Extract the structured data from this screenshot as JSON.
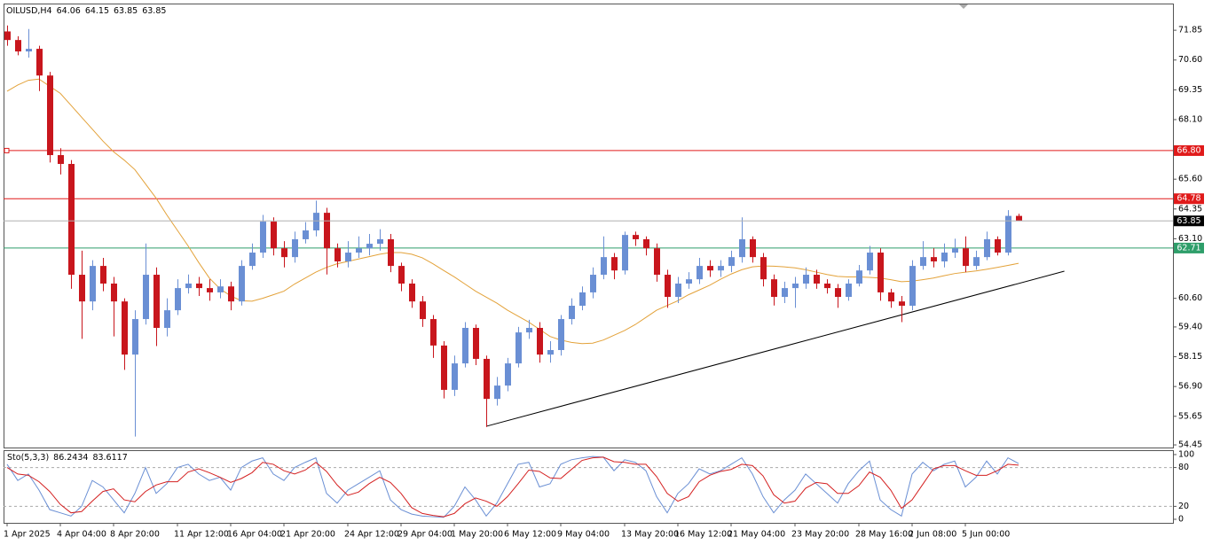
{
  "chart_data": [
    {
      "type": "candlestick",
      "symbol": "OILUSD,H4",
      "categories": [
        "1 Apr 2025",
        null,
        null,
        null,
        null,
        "4 Apr 04:00",
        null,
        null,
        null,
        null,
        "8 Apr 20:00",
        null,
        null,
        null,
        null,
        null,
        "11 Apr 12:00",
        null,
        null,
        null,
        null,
        "16 Apr 04:00",
        null,
        null,
        null,
        null,
        "21 Apr 20:00",
        null,
        null,
        null,
        null,
        null,
        "24 Apr 12:00",
        null,
        null,
        null,
        null,
        "29 Apr 04:00",
        null,
        null,
        null,
        null,
        "1 May 20:00",
        null,
        null,
        null,
        null,
        "6 May 12:00",
        null,
        null,
        null,
        null,
        "9 May 04:00",
        null,
        null,
        null,
        null,
        null,
        "13 May 20:00",
        null,
        null,
        null,
        null,
        "16 May 12:00",
        null,
        null,
        null,
        null,
        "21 May 04:00",
        null,
        null,
        null,
        null,
        null,
        "23 May 20:00",
        null,
        null,
        null,
        null,
        null,
        "28 May 16:00",
        null,
        null,
        null,
        null,
        "2 Jun 08:00",
        null,
        null,
        null,
        null,
        "5 Jun 00:00",
        null,
        null,
        null,
        null,
        null
      ],
      "open": [
        71.8,
        71.44,
        70.96,
        71.07,
        69.95,
        66.61,
        66.24,
        61.59,
        60.47,
        61.96,
        61.22,
        60.47,
        58.24,
        59.73,
        61.59,
        59.36,
        60.1,
        61.03,
        61.22,
        61.03,
        60.85,
        61.1,
        60.47,
        61.96,
        62.52,
        63.82,
        62.7,
        62.33,
        63.08,
        63.45,
        64.19,
        62.7,
        62.15,
        62.52,
        62.7,
        62.89,
        63.08,
        61.96,
        61.22,
        60.47,
        59.73,
        58.62,
        56.76,
        57.87,
        59.36,
        58.06,
        56.38,
        56.94,
        57.87,
        59.17,
        59.36,
        58.24,
        58.43,
        59.73,
        60.29,
        60.85,
        61.59,
        62.33,
        61.77,
        63.26,
        63.08,
        62.7,
        61.59,
        60.66,
        61.22,
        61.4,
        61.96,
        61.77,
        61.96,
        62.33,
        63.08,
        62.33,
        61.4,
        60.66,
        61.03,
        61.22,
        61.59,
        61.22,
        61.03,
        60.66,
        61.22,
        61.77,
        62.52,
        60.85,
        60.47,
        60.29,
        61.96,
        62.33,
        62.15,
        62.52,
        62.7,
        61.96,
        62.33,
        63.08,
        62.52,
        64.06
      ],
      "high": [
        72.05,
        71.6,
        71.9,
        71.2,
        70.1,
        66.9,
        66.4,
        62.6,
        62.2,
        62.3,
        61.5,
        60.6,
        60.1,
        62.9,
        61.9,
        60.6,
        61.4,
        61.6,
        61.5,
        61.4,
        61.4,
        61.3,
        62.2,
        62.9,
        64.1,
        64.0,
        63.0,
        63.4,
        63.8,
        64.7,
        64.4,
        62.9,
        63.0,
        63.2,
        63.3,
        63.5,
        63.3,
        62.1,
        61.4,
        60.7,
        59.9,
        58.8,
        58.2,
        59.6,
        59.5,
        58.2,
        57.3,
        58.1,
        59.4,
        59.7,
        59.6,
        58.8,
        59.9,
        60.6,
        61.1,
        61.9,
        63.2,
        62.5,
        63.4,
        63.4,
        63.2,
        62.9,
        61.8,
        61.5,
        61.7,
        62.3,
        62.2,
        62.2,
        62.6,
        64.0,
        63.2,
        62.5,
        61.6,
        61.3,
        61.5,
        61.9,
        61.8,
        61.4,
        61.2,
        61.4,
        62.0,
        62.8,
        62.7,
        61.0,
        60.7,
        62.2,
        63.0,
        62.7,
        62.9,
        63.1,
        63.2,
        62.6,
        63.4,
        63.2,
        64.3,
        64.15
      ],
      "low": [
        71.2,
        70.8,
        70.7,
        69.3,
        66.3,
        65.8,
        61.0,
        58.9,
        60.1,
        60.9,
        59.0,
        57.6,
        54.8,
        59.5,
        58.6,
        59.0,
        59.9,
        60.8,
        60.7,
        60.5,
        60.6,
        60.1,
        60.3,
        61.8,
        62.3,
        62.4,
        61.9,
        62.1,
        62.9,
        63.2,
        61.6,
        61.9,
        61.9,
        62.3,
        62.4,
        62.6,
        61.7,
        60.9,
        60.2,
        59.4,
        58.1,
        56.4,
        56.5,
        57.7,
        57.8,
        55.2,
        56.1,
        56.7,
        57.7,
        58.9,
        57.9,
        57.9,
        58.2,
        59.5,
        60.1,
        60.6,
        61.4,
        61.4,
        61.6,
        62.8,
        62.4,
        61.3,
        60.2,
        60.4,
        61.0,
        61.2,
        61.5,
        61.5,
        61.7,
        62.1,
        62.1,
        61.1,
        60.3,
        60.4,
        60.2,
        61.0,
        61.0,
        60.8,
        60.2,
        60.5,
        61.1,
        61.6,
        60.5,
        60.2,
        59.6,
        60.1,
        61.8,
        61.9,
        61.9,
        62.3,
        61.7,
        61.8,
        62.2,
        62.4,
        62.4,
        63.85
      ],
      "close": [
        71.44,
        70.96,
        71.07,
        69.95,
        66.61,
        66.24,
        61.59,
        60.47,
        61.96,
        61.22,
        60.47,
        58.24,
        59.73,
        61.59,
        59.36,
        60.1,
        61.03,
        61.22,
        61.03,
        60.85,
        61.1,
        60.47,
        61.96,
        62.52,
        63.82,
        62.7,
        62.33,
        63.08,
        63.45,
        64.19,
        62.7,
        62.15,
        62.52,
        62.7,
        62.89,
        63.08,
        61.96,
        61.22,
        60.47,
        59.73,
        58.62,
        56.76,
        57.87,
        59.36,
        58.06,
        56.38,
        56.94,
        57.87,
        59.17,
        59.36,
        58.24,
        58.43,
        59.73,
        60.29,
        60.85,
        61.59,
        62.33,
        61.77,
        63.26,
        63.08,
        62.7,
        61.59,
        60.66,
        61.22,
        61.4,
        61.96,
        61.77,
        61.96,
        62.33,
        63.08,
        62.33,
        61.4,
        60.66,
        61.03,
        61.22,
        61.59,
        61.22,
        61.03,
        60.66,
        61.22,
        61.77,
        62.52,
        60.85,
        60.47,
        60.29,
        61.96,
        62.33,
        62.15,
        62.52,
        62.7,
        61.96,
        62.33,
        63.08,
        62.52,
        64.06,
        63.85
      ],
      "up_color": "#6a8fd4",
      "down_color": "#c8161d",
      "ma": {
        "color": "#e3a23a",
        "values": [
          69.29,
          69.55,
          69.75,
          69.8,
          69.5,
          69.2,
          68.7,
          68.2,
          67.7,
          67.2,
          66.75,
          66.4,
          66.0,
          65.4,
          64.8,
          64.1,
          63.45,
          62.8,
          62.1,
          61.45,
          61.0,
          60.7,
          60.5,
          60.48,
          60.6,
          60.75,
          60.9,
          61.2,
          61.45,
          61.7,
          61.9,
          62.05,
          62.15,
          62.25,
          62.35,
          62.45,
          62.52,
          62.52,
          62.45,
          62.3,
          62.05,
          61.77,
          61.5,
          61.2,
          60.9,
          60.65,
          60.4,
          60.1,
          59.85,
          59.6,
          59.3,
          59.0,
          58.85,
          58.75,
          58.7,
          58.72,
          58.85,
          59.05,
          59.25,
          59.5,
          59.8,
          60.1,
          60.3,
          60.5,
          60.75,
          60.95,
          61.15,
          61.4,
          61.62,
          61.8,
          61.92,
          61.96,
          61.95,
          61.92,
          61.88,
          61.8,
          61.7,
          61.6,
          61.52,
          61.5,
          61.5,
          61.48,
          61.45,
          61.38,
          61.3,
          61.32,
          61.38,
          61.45,
          61.55,
          61.64,
          61.7,
          61.75,
          61.82,
          61.9,
          61.98,
          62.07
        ]
      },
      "levels": [
        {
          "value": 66.8,
          "label": "66.80",
          "color": "#e01a1a"
        },
        {
          "value": 64.78,
          "color": "#e01a1a"
        },
        {
          "value": 62.71,
          "color": "#2e9e6a"
        }
      ],
      "price_line_color": "#b0b0b0",
      "trendline": {
        "x": [
          45,
          99.3
        ],
        "values": [
          55.23,
          61.74
        ],
        "color": "#000000"
      },
      "ylim": [
        54.34,
        72.97
      ],
      "yticks": [
        54.45,
        55.65,
        {
          "value": 56.9,
          "label": "56.90"
        },
        58.15,
        {
          "value": 59.4,
          "label": "59.40"
        },
        {
          "value": 60.6,
          "label": "60.60"
        },
        {
          "value": 63.1,
          "label": "63.10"
        },
        64.35,
        {
          "value": 65.6,
          "label": "65.60"
        },
        {
          "value": 68.1,
          "label": "68.10"
        },
        69.35,
        {
          "value": 70.6,
          "label": "70.60"
        },
        71.85
      ]
    },
    {
      "type": "line",
      "title": "Sto(5,3,3)",
      "series": [
        {
          "color": "#6a8fd4",
          "values": [
            85,
            60,
            70,
            45,
            15,
            10,
            5,
            20,
            60,
            50,
            30,
            10,
            40,
            80,
            40,
            55,
            80,
            85,
            70,
            60,
            65,
            45,
            80,
            90,
            95,
            70,
            60,
            80,
            88,
            95,
            40,
            25,
            45,
            55,
            65,
            75,
            30,
            15,
            8,
            5,
            4,
            3,
            20,
            50,
            30,
            5,
            25,
            55,
            85,
            88,
            50,
            55,
            85,
            92,
            95,
            97,
            96,
            75,
            92,
            88,
            75,
            35,
            10,
            40,
            55,
            78,
            70,
            75,
            85,
            95,
            70,
            35,
            10,
            30,
            45,
            70,
            55,
            40,
            25,
            55,
            75,
            90,
            30,
            15,
            5,
            70,
            88,
            75,
            85,
            90,
            50,
            65,
            90,
            70,
            95,
            86.2434
          ]
        },
        {
          "color": "#d42020",
          "values": [
            80,
            70,
            68,
            58,
            43,
            23,
            10,
            12,
            28,
            43,
            47,
            30,
            27,
            43,
            53,
            58,
            58,
            73,
            78,
            72,
            65,
            57,
            63,
            72,
            88,
            85,
            75,
            70,
            76,
            88,
            74,
            53,
            37,
            42,
            55,
            65,
            57,
            40,
            18,
            9,
            6,
            4,
            9,
            24,
            33,
            28,
            20,
            35,
            55,
            76,
            74,
            64,
            63,
            77,
            91,
            95,
            96,
            89,
            88,
            85,
            85,
            66,
            40,
            28,
            35,
            58,
            68,
            74,
            77,
            85,
            83,
            67,
            38,
            25,
            28,
            48,
            57,
            55,
            40,
            40,
            52,
            73,
            65,
            45,
            17,
            30,
            54,
            78,
            83,
            83,
            75,
            68,
            68,
            75,
            85,
            83.6117
          ]
        }
      ],
      "levels": [
        20,
        80
      ],
      "ylim": [
        -5.5,
        106.8
      ],
      "yticks": [
        0,
        20,
        80,
        100
      ]
    }
  ]
}
